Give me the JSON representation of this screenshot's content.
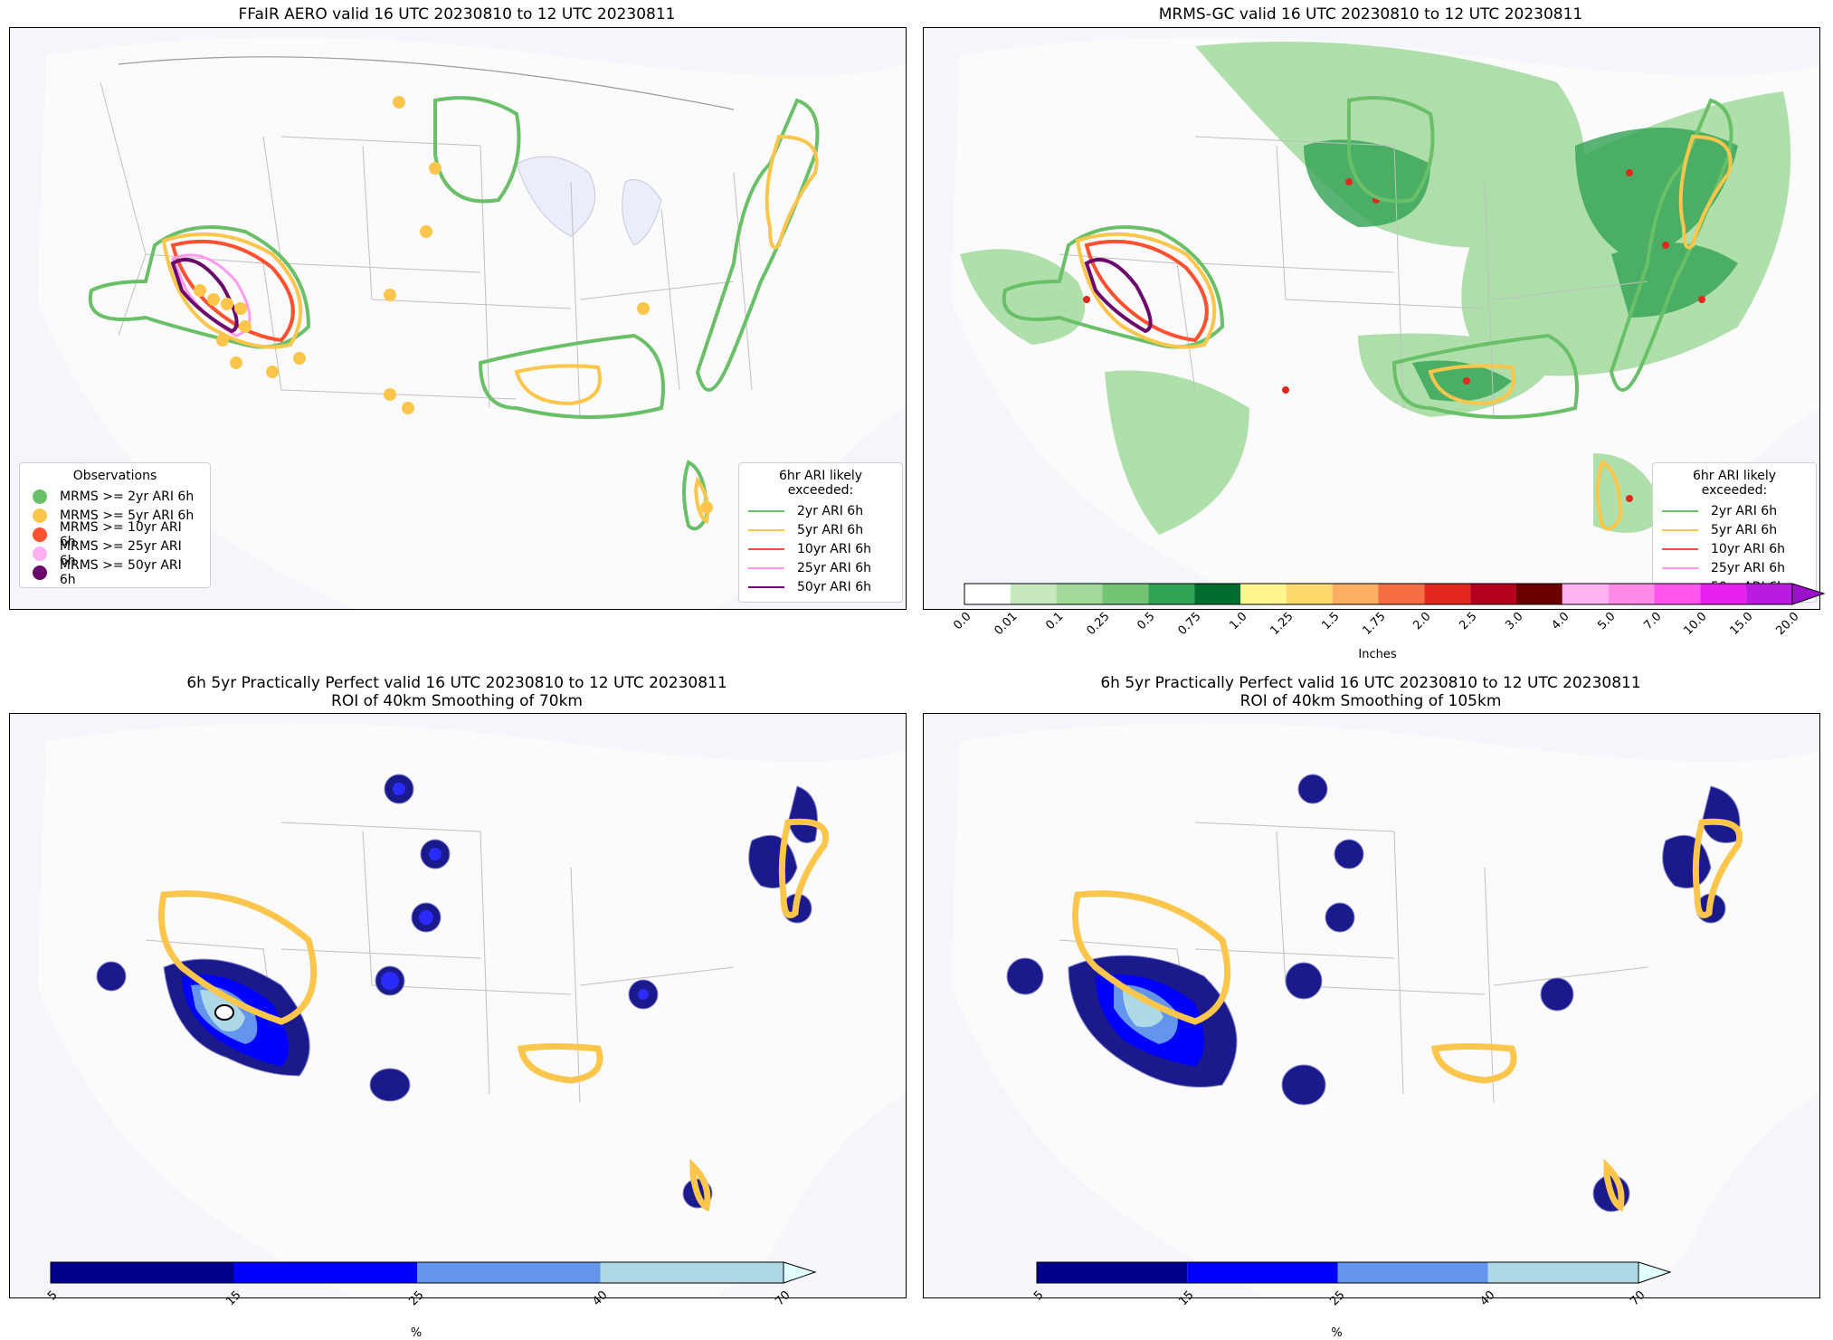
{
  "panels": [
    {
      "id": "p1",
      "title": "FFaIR AERO valid 16 UTC 20230810 to 12 UTC 20230811"
    },
    {
      "id": "p2",
      "title": "MRMS-GC valid 16 UTC 20230810 to 12 UTC 20230811"
    },
    {
      "id": "p3",
      "title": "6h 5yr Practically Perfect valid 16 UTC 20230810 to 12 UTC 20230811\nROI of 40km Smoothing of 70km"
    },
    {
      "id": "p4",
      "title": "6h 5yr Practically Perfect valid 16 UTC 20230810 to 12 UTC 20230811\nROI of 40km Smoothing of 105km"
    }
  ],
  "observations_legend": {
    "title": "Observations",
    "items": [
      {
        "label": "MRMS >= 2yr ARI 6h",
        "color": "#6abf69"
      },
      {
        "label": "MRMS >= 5yr ARI 6h",
        "color": "#fbc64b"
      },
      {
        "label": "MRMS >= 10yr ARI 6h",
        "color": "#ff5030"
      },
      {
        "label": "MRMS >= 25yr ARI 6h",
        "color": "#ffb0f0"
      },
      {
        "label": "MRMS >= 50yr ARI 6h",
        "color": "#6a0a6a"
      }
    ]
  },
  "ari_legend": {
    "title": "6hr ARI likely exceeded:",
    "items": [
      {
        "label": "2yr ARI 6h",
        "color": "#6abf69"
      },
      {
        "label": "5yr ARI 6h",
        "color": "#fbc64b"
      },
      {
        "label": "10yr ARI 6h",
        "color": "#ff5030"
      },
      {
        "label": "25yr ARI 6h",
        "color": "#ff99ee"
      },
      {
        "label": "50yr ARI 6h",
        "color": "#6a0a6a"
      }
    ]
  },
  "precip_colorbar": {
    "label": "Inches",
    "ticks": [
      "0.0",
      "0.01",
      "0.1",
      "0.25",
      "0.5",
      "0.75",
      "1.0",
      "1.25",
      "1.5",
      "1.75",
      "2.0",
      "2.5",
      "3.0",
      "4.0",
      "5.0",
      "7.0",
      "10.0",
      "15.0",
      "20.0"
    ],
    "colors": [
      "#ffffff",
      "#c7e9c0",
      "#a1d99b",
      "#74c476",
      "#31a354",
      "#006d2c",
      "#fff68f",
      "#ffd86b",
      "#fdae61",
      "#f46d43",
      "#e3281f",
      "#b3001f",
      "#6b0000",
      "#ffb3f2",
      "#ff8ae8",
      "#ff55ee",
      "#e820f0",
      "#b91ce0"
    ],
    "extend_color": "#9b10c8"
  },
  "prob_colorbar": {
    "label": "%",
    "ticks": [
      "5",
      "15",
      "25",
      "40",
      "70"
    ],
    "colors": [
      "#00008b",
      "#0000ff",
      "#6495ed",
      "#add8e6"
    ],
    "extend_color": "#e0ffff"
  }
}
